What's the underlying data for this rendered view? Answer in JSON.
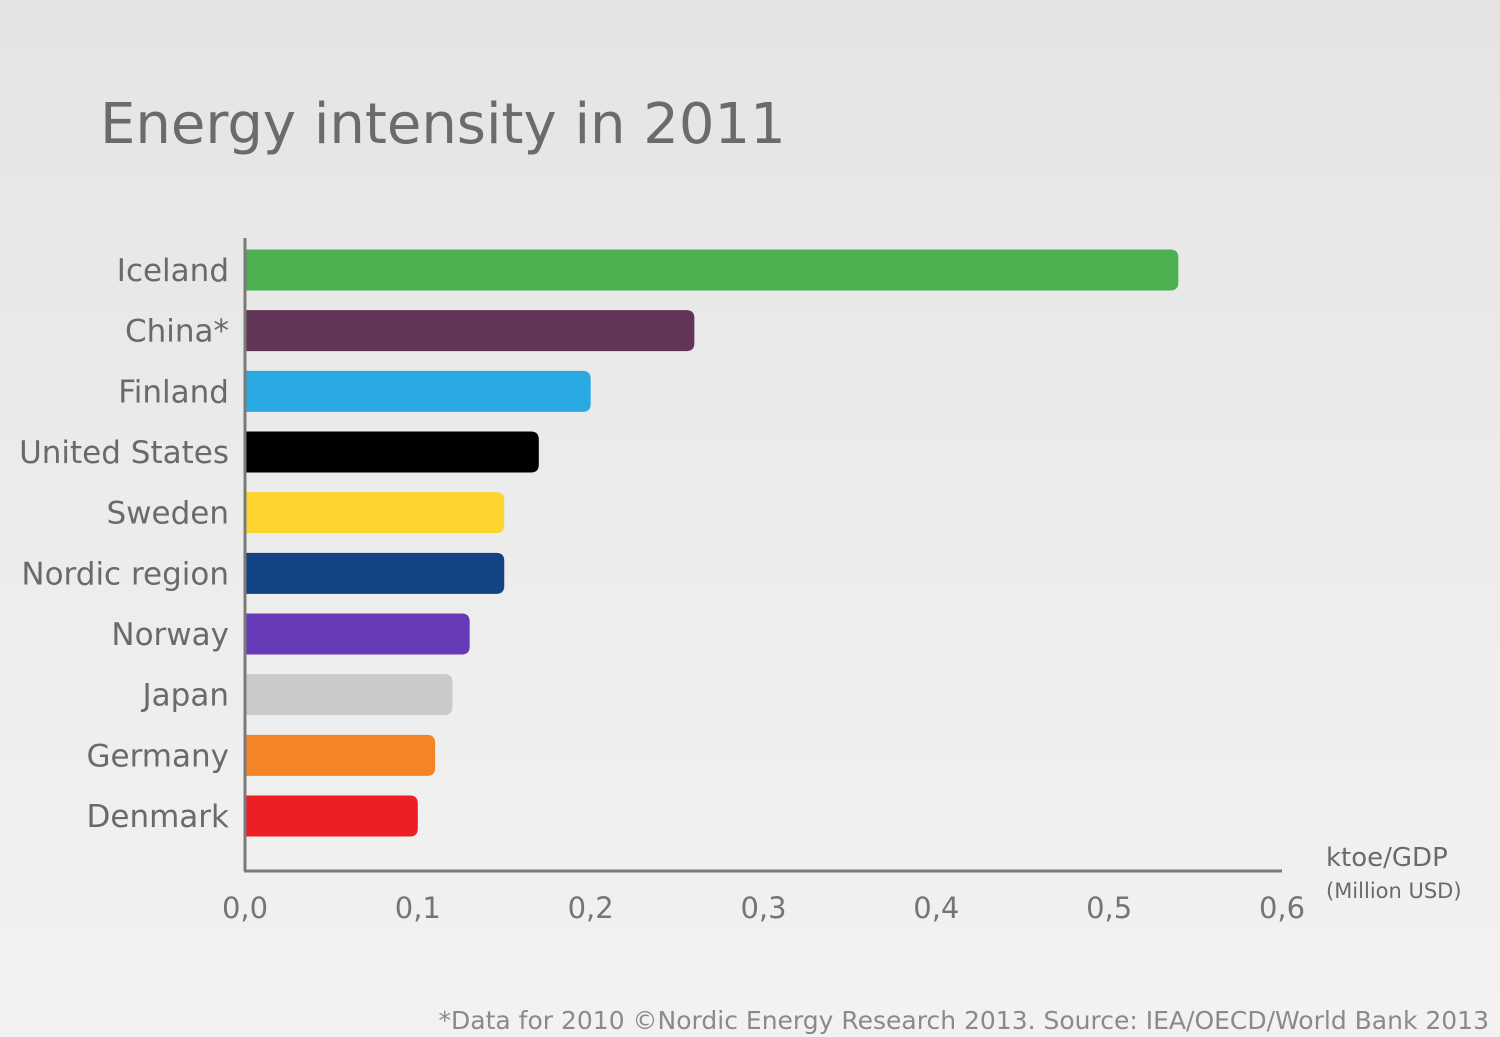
{
  "chart_data": {
    "type": "bar",
    "orientation": "horizontal",
    "title": "Energy intensity in 2011",
    "categories": [
      "Iceland",
      "China*",
      "Finland",
      "United States",
      "Sweden",
      "Nordic region",
      "Norway",
      "Japan",
      "Germany",
      "Denmark"
    ],
    "values": [
      0.54,
      0.26,
      0.2,
      0.17,
      0.15,
      0.15,
      0.13,
      0.12,
      0.11,
      0.1
    ],
    "colors": [
      "#4caf50",
      "#623456",
      "#29a9e1",
      "#000000",
      "#fed530",
      "#134384",
      "#673ab7",
      "#cacaca",
      "#f48425",
      "#ed1f24"
    ],
    "xlim": [
      0,
      0.6
    ],
    "xticks": [
      "0,0",
      "0,1",
      "0,2",
      "0,3",
      "0,4",
      "0,5",
      "0,6"
    ],
    "xlabel": "ktoe/GDP",
    "xlabel_sub": "(Million USD)",
    "ylabel": "",
    "grid": false,
    "legend": "none",
    "footnote": "*Data for 2010 ©Nordic Energy Research 2013. Source: IEA/OECD/World Bank 2013"
  }
}
